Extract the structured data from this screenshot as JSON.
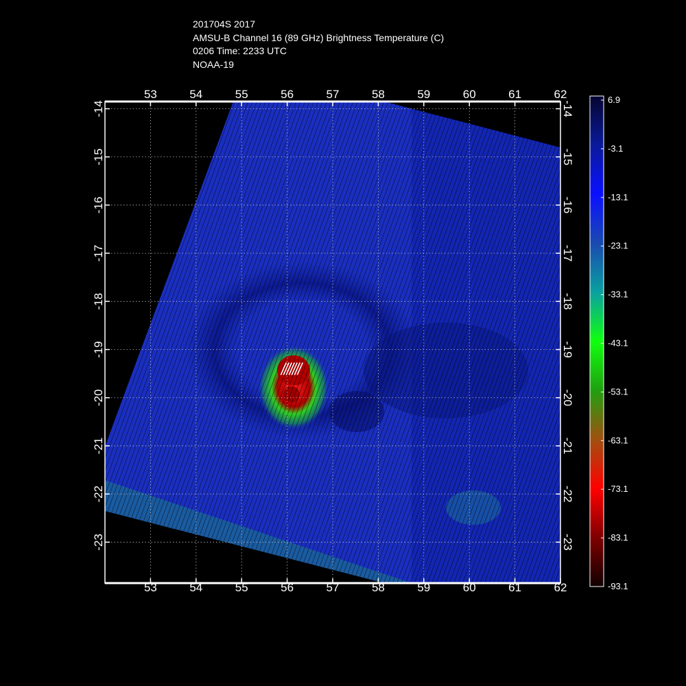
{
  "header": {
    "storm_id": "201704S 2017",
    "product": "AMSU-B Channel 16 (89 GHz) Brightness Temperature (C)",
    "time": "0206 Time: 2233 UTC",
    "satellite": "NOAA-19"
  },
  "map": {
    "lon_ticks": [
      "53",
      "54",
      "55",
      "56",
      "57",
      "58",
      "59",
      "60",
      "61",
      "62"
    ],
    "lat_ticks": [
      "-14",
      "-15",
      "-16",
      "-17",
      "-18",
      "-19",
      "-20",
      "-21",
      "-22",
      "-23"
    ],
    "lon_range": [
      52,
      62
    ],
    "lat_range": [
      -13.85,
      -23.85
    ],
    "grid": true,
    "storm_center": {
      "lon": 56.1,
      "lat": -19.4
    },
    "colors": {
      "background": "#000000",
      "swath_blue": "#1a2fc0",
      "deep_blue": "#0a1a8a",
      "core_green": "#20c020",
      "core_red": "#b00000"
    }
  },
  "colorbar": {
    "labels": [
      "6.9",
      "-3.1",
      "-13.1",
      "-23.1",
      "-33.1",
      "-43.1",
      "-53.1",
      "-63.1",
      "-73.1",
      "-83.1",
      "-93.1"
    ],
    "stops": [
      "#050530",
      "#0a1a9a",
      "#0a10ff",
      "#1a4ab0",
      "#0aa0a0",
      "#10ff10",
      "#20a010",
      "#a05010",
      "#ff0000",
      "#800000",
      "#100000"
    ]
  }
}
